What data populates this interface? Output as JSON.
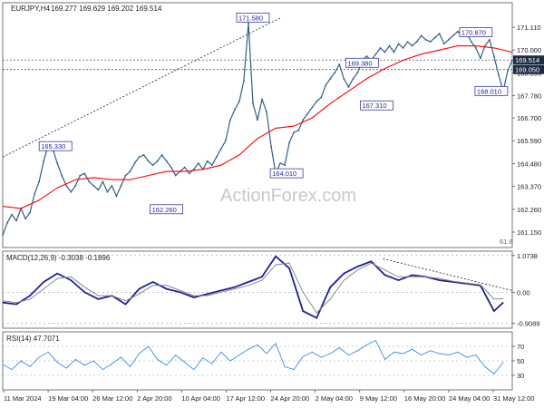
{
  "header": {
    "symbol": "EURJPY,H4",
    "ohlc": "169.277 169.629 169.202 169.514"
  },
  "watermark": "ActionForex.com",
  "colors": {
    "candle": "#2f5f86",
    "ema": "#ff0000",
    "macd": "#1f1f9a",
    "signal": "#8a8a8a",
    "rsi": "#3d8ee6",
    "trend": "#222222",
    "price_label_bg": "#1e2a44",
    "grid": "#999999"
  },
  "chart_data": [
    {
      "type": "line",
      "title": "EURJPY,H4",
      "subtitle": "169.277 169.629 169.202 169.514",
      "ylim": [
        160.4,
        172.3
      ],
      "yticks": [
        "171.110",
        "170.000",
        "168.890",
        "167.780",
        "166.700",
        "165.590",
        "164.480",
        "163.370",
        "162.260",
        "161.150"
      ],
      "ytick_values": [
        171.11,
        170.0,
        168.89,
        167.78,
        166.7,
        165.59,
        164.48,
        163.37,
        162.26,
        161.15
      ],
      "series": [
        {
          "name": "EURJPY",
          "x": [
            0,
            5,
            10,
            15,
            20,
            25,
            30,
            35,
            40,
            45,
            50,
            55,
            60,
            65,
            70,
            75,
            80,
            85,
            90,
            95,
            100,
            105,
            110,
            115,
            120,
            125,
            130,
            135,
            140,
            145,
            150,
            155,
            160,
            165,
            170,
            175,
            180,
            185,
            190,
            195,
            200,
            205,
            210,
            215,
            220,
            225,
            230,
            235,
            240,
            245,
            250,
            255,
            260,
            265,
            270,
            275,
            280,
            285,
            290,
            295,
            300,
            305,
            310,
            315,
            320,
            325,
            330,
            335,
            340,
            345,
            350,
            355,
            360,
            365,
            370,
            375,
            380,
            385,
            390,
            395,
            400,
            405,
            410,
            415,
            420,
            425,
            430,
            435,
            440,
            445,
            450,
            455,
            460,
            465,
            470,
            475,
            480,
            485,
            490,
            495,
            500,
            505,
            510,
            515,
            520,
            525,
            530,
            535,
            540,
            545,
            550,
            555,
            560
          ],
          "values": [
            161.0,
            161.6,
            162.0,
            161.7,
            162.3,
            161.8,
            162.1,
            163.0,
            163.6,
            164.6,
            165.4,
            165.2,
            164.5,
            163.9,
            163.4,
            163.1,
            163.4,
            163.9,
            164.0,
            163.6,
            163.4,
            163.2,
            163.6,
            163.1,
            163.4,
            162.9,
            163.4,
            163.9,
            164.1,
            164.5,
            164.8,
            164.9,
            164.6,
            164.4,
            164.6,
            164.9,
            164.6,
            164.3,
            163.9,
            164.1,
            164.3,
            164.0,
            164.2,
            164.5,
            164.2,
            164.6,
            164.4,
            164.8,
            165.2,
            165.6,
            166.6,
            167.1,
            167.5,
            168.5,
            171.3,
            167.4,
            166.6,
            167.6,
            167.0,
            165.3,
            164.0,
            164.5,
            164.4,
            165.5,
            166.0,
            166.1,
            166.6,
            166.9,
            167.2,
            167.5,
            167.7,
            168.3,
            168.6,
            168.9,
            169.3,
            168.6,
            168.2,
            168.6,
            168.9,
            169.5,
            169.7,
            169.5,
            169.8,
            170.1,
            169.9,
            170.2,
            169.9,
            170.3,
            170.1,
            170.4,
            170.2,
            170.4,
            170.7,
            170.5,
            170.4,
            170.6,
            170.8,
            170.3,
            170.5,
            170.7,
            170.9,
            170.7,
            170.8,
            170.4,
            170.1,
            169.6,
            170.2,
            170.5,
            169.7,
            168.8,
            168.0,
            169.0,
            169.5
          ]
        },
        {
          "name": "EMA",
          "x": [
            0,
            20,
            40,
            60,
            80,
            100,
            120,
            140,
            160,
            180,
            200,
            220,
            240,
            260,
            280,
            300,
            320,
            340,
            360,
            380,
            400,
            420,
            440,
            460,
            480,
            500,
            520,
            540,
            560
          ],
          "values": [
            162.4,
            162.3,
            162.7,
            163.3,
            163.7,
            163.8,
            163.7,
            163.7,
            163.9,
            164.1,
            164.1,
            164.2,
            164.4,
            164.9,
            165.7,
            166.2,
            166.3,
            166.7,
            167.4,
            168.0,
            168.6,
            169.1,
            169.5,
            169.8,
            170.0,
            170.2,
            170.2,
            170.1,
            169.9
          ]
        }
      ],
      "annotations": [
        {
          "text": "171.580",
          "x": 275,
          "y": 171.58
        },
        {
          "text": "165.330",
          "x": 58,
          "y": 165.33
        },
        {
          "text": "162.260",
          "x": 180,
          "y": 162.26
        },
        {
          "text": "164.010",
          "x": 312,
          "y": 164.01
        },
        {
          "text": "169.380",
          "x": 395,
          "y": 169.38
        },
        {
          "text": "167.310",
          "x": 411,
          "y": 167.31
        },
        {
          "text": "170.870",
          "x": 520,
          "y": 170.87
        },
        {
          "text": "168.010",
          "x": 537,
          "y": 168.01
        }
      ],
      "price_labels": [
        "169.514",
        "169.050"
      ],
      "fib_label": "61.8"
    },
    {
      "type": "line",
      "title": "MACD(12,26,9) -0.3038 -0.1896",
      "yticks": [
        "1.0738",
        "0.00",
        "-0.9089"
      ],
      "ytick_values": [
        1.0738,
        0.0,
        -0.9089
      ],
      "ylim": [
        -1.05,
        1.2
      ],
      "series": [
        {
          "name": "MACD",
          "x": [
            0,
            15,
            30,
            45,
            60,
            75,
            90,
            105,
            120,
            135,
            150,
            165,
            180,
            195,
            210,
            225,
            240,
            255,
            270,
            285,
            300,
            315,
            330,
            345,
            360,
            375,
            390,
            405,
            420,
            435,
            450,
            465,
            480,
            495,
            510,
            525,
            540,
            550
          ],
          "values": [
            -0.3,
            -0.35,
            -0.1,
            0.3,
            0.55,
            0.35,
            0.0,
            -0.2,
            -0.1,
            -0.35,
            0.1,
            0.3,
            0.1,
            0.0,
            -0.15,
            -0.05,
            0.05,
            0.15,
            0.3,
            0.45,
            1.05,
            0.7,
            -0.55,
            -0.75,
            0.15,
            0.55,
            0.75,
            0.9,
            0.5,
            0.35,
            0.5,
            0.45,
            0.35,
            0.3,
            0.25,
            0.2,
            -0.55,
            -0.3
          ]
        },
        {
          "name": "Signal",
          "x": [
            0,
            15,
            30,
            45,
            60,
            75,
            90,
            105,
            120,
            135,
            150,
            165,
            180,
            195,
            210,
            225,
            240,
            255,
            270,
            285,
            300,
            315,
            330,
            345,
            360,
            375,
            390,
            405,
            420,
            435,
            450,
            465,
            480,
            495,
            510,
            525,
            540,
            550
          ],
          "values": [
            -0.25,
            -0.3,
            -0.2,
            0.1,
            0.4,
            0.45,
            0.15,
            -0.1,
            -0.1,
            -0.25,
            -0.05,
            0.2,
            0.2,
            0.05,
            -0.1,
            -0.1,
            0.0,
            0.1,
            0.2,
            0.35,
            0.8,
            0.85,
            0.0,
            -0.6,
            -0.2,
            0.35,
            0.65,
            0.85,
            0.65,
            0.45,
            0.45,
            0.45,
            0.4,
            0.32,
            0.27,
            0.22,
            -0.2,
            -0.19
          ]
        }
      ]
    },
    {
      "type": "line",
      "title": "RSI(14) 47.7071",
      "yticks": [
        "70",
        "50",
        "30"
      ],
      "ytick_values": [
        70,
        50,
        30
      ],
      "ylim": [
        10,
        90
      ],
      "series": [
        {
          "name": "RSI",
          "x": [
            0,
            10,
            20,
            30,
            40,
            50,
            60,
            70,
            80,
            90,
            100,
            110,
            120,
            130,
            140,
            150,
            160,
            170,
            180,
            190,
            200,
            210,
            220,
            230,
            240,
            250,
            260,
            270,
            280,
            290,
            300,
            310,
            320,
            330,
            340,
            350,
            360,
            370,
            380,
            390,
            400,
            410,
            420,
            430,
            440,
            450,
            460,
            470,
            480,
            490,
            500,
            510,
            520,
            530,
            540,
            550
          ],
          "values": [
            45,
            38,
            50,
            42,
            55,
            62,
            48,
            40,
            52,
            44,
            50,
            38,
            46,
            55,
            42,
            60,
            70,
            52,
            44,
            58,
            48,
            38,
            54,
            46,
            62,
            50,
            58,
            66,
            72,
            60,
            74,
            42,
            38,
            56,
            62,
            55,
            60,
            68,
            58,
            64,
            72,
            78,
            52,
            62,
            60,
            66,
            58,
            64,
            60,
            58,
            62,
            55,
            58,
            42,
            32,
            48
          ]
        }
      ]
    }
  ],
  "xaxis": {
    "labels": [
      "11 Mar 2024",
      "19 Mar 04:00",
      "26 Mar 12:00",
      "2 Apr 20:00",
      "10 Apr 04:00",
      "17 Apr 12:00",
      "24 Apr 20:00",
      "2 May 04:00",
      "9 May 12:00",
      "16 May 20:00",
      "24 May 04:00",
      "31 May 12:00"
    ]
  }
}
